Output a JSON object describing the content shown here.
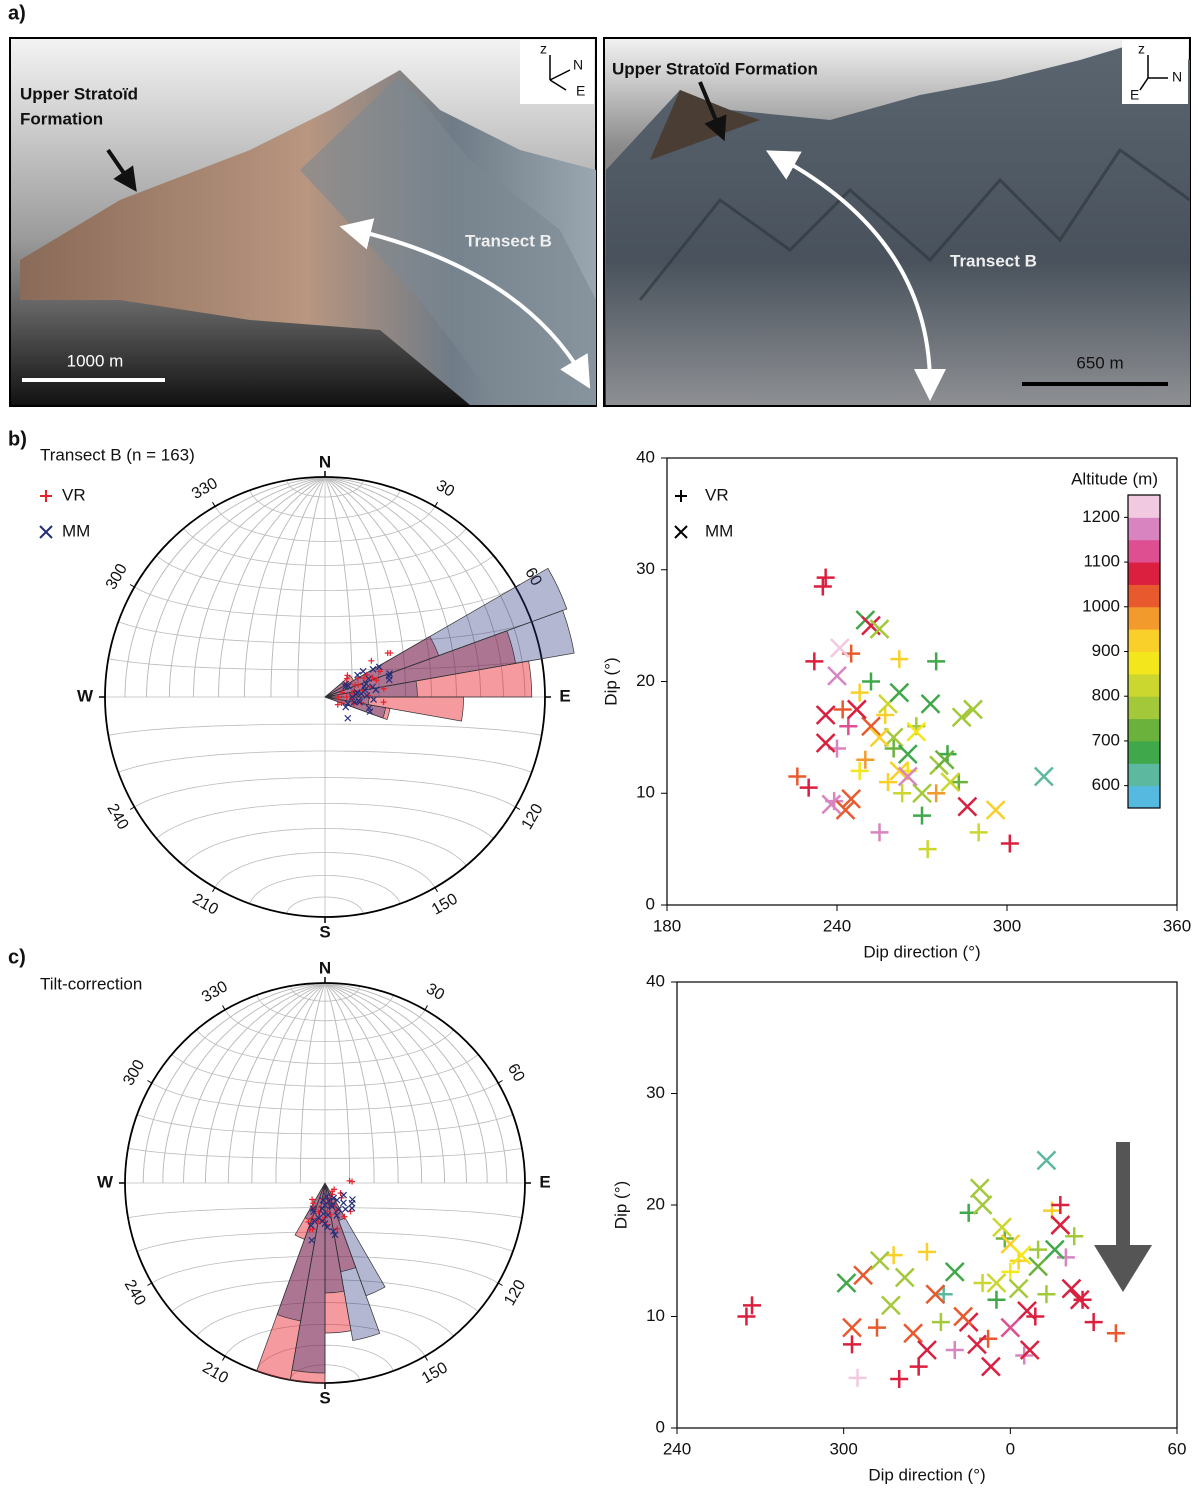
{
  "panel_labels": [
    "a)",
    "b)",
    "c)"
  ],
  "photos": [
    {
      "formation_label": [
        "Upper Stratoïd",
        "Formation"
      ],
      "transect_label": "Transect B",
      "scale_label": "1000 m",
      "compass": [
        "z",
        "N",
        "E"
      ]
    },
    {
      "formation_label": [
        "Upper Stratoïd Formation"
      ],
      "transect_label": "Transect B",
      "scale_label": "650 m",
      "compass": [
        "z",
        "N",
        "E"
      ]
    }
  ],
  "chart_data": [
    {
      "type": "stereonet",
      "title": "Transect B (n = 163)",
      "directions": [
        "N",
        "E",
        "S",
        "W"
      ],
      "azimuth_labels": [
        30,
        60,
        120,
        150,
        210,
        240,
        300,
        330
      ],
      "series": [
        {
          "name": "VR",
          "color": "#e8202a",
          "marker": "+",
          "rose": {
            "bins": [
              50,
              60,
              70,
              80,
              90,
              100,
              110
            ],
            "values": [
              0.15,
              0.55,
              0.88,
              0.94,
              0.63,
              0.3
            ]
          }
        },
        {
          "name": "MM",
          "color": "#26307a",
          "marker": "x",
          "rose": {
            "bins": [
              50,
              60,
              70,
              80,
              90,
              100,
              110
            ],
            "values": [
              0.1,
              1.17,
              1.15,
              0.42,
              0.2,
              0.28
            ]
          }
        }
      ]
    },
    {
      "type": "scatter",
      "xlabel": "Dip direction (°)",
      "ylabel": "Dip (°)",
      "xlim": [
        180,
        360
      ],
      "xticks": [
        180,
        240,
        300,
        360
      ],
      "ylim": [
        0,
        40
      ],
      "yticks": [
        0,
        10,
        20,
        30,
        40
      ],
      "colorbar": {
        "title": "Altitude (m)",
        "clim": [
          550,
          1250
        ],
        "ticks": [
          600,
          700,
          800,
          900,
          1000,
          1100,
          1200
        ],
        "colors": [
          "#56b9e0",
          "#5db8a0",
          "#3fa84a",
          "#6ab23c",
          "#a3c83a",
          "#cbd62e",
          "#f4e61c",
          "#f9d02a",
          "#f39a2c",
          "#e8592e",
          "#da1f3f",
          "#de4f92",
          "#d884c0",
          "#f1c9e0"
        ]
      },
      "series": [
        {
          "name": "VR",
          "marker": "+",
          "x": [
            236,
            235,
            232,
            230,
            226,
            239,
            240,
            245,
            242,
            248,
            250,
            255,
            257,
            260,
            262,
            265,
            268,
            270,
            272,
            275,
            279,
            283,
            290,
            301,
            252,
            263,
            244,
            258,
            275,
            248
          ],
          "y": [
            29.3,
            28.5,
            21.8,
            10.5,
            11.5,
            9.3,
            14,
            22.5,
            17.5,
            19,
            13,
            6.5,
            17,
            14,
            22,
            12,
            16,
            8,
            5,
            21.8,
            13.5,
            11,
            6.5,
            5.5,
            20,
            10,
            16,
            11,
            10,
            12
          ],
          "altitude": [
            1050,
            1050,
            1050,
            1050,
            1000,
            1150,
            1150,
            1000,
            1000,
            900,
            950,
            1150,
            900,
            700,
            900,
            850,
            750,
            650,
            800,
            650,
            650,
            700,
            800,
            1050,
            650,
            800,
            1100,
            900,
            950,
            850
          ]
        },
        {
          "name": "MM",
          "marker": "x",
          "x": [
            236,
            236,
            240,
            238,
            243,
            245,
            250,
            252,
            255,
            252,
            258,
            260,
            262,
            265,
            268,
            270,
            273,
            276,
            280,
            284,
            286,
            288,
            296,
            313,
            241,
            247,
            255,
            265,
            278,
            262
          ],
          "y": [
            17,
            14.5,
            20.5,
            9,
            8.5,
            9.5,
            25.5,
            25,
            24.7,
            16,
            18,
            15,
            12,
            13.5,
            15.5,
            10,
            18,
            12.5,
            11,
            16.8,
            8.8,
            17.5,
            8.5,
            11.5,
            23,
            17.5,
            15,
            11.5,
            13,
            19
          ],
          "altitude": [
            1050,
            1050,
            1150,
            1150,
            1000,
            1000,
            650,
            1050,
            750,
            1000,
            800,
            750,
            900,
            650,
            850,
            750,
            650,
            750,
            800,
            750,
            1050,
            750,
            900,
            600,
            1200,
            1050,
            900,
            1150,
            700,
            650
          ]
        }
      ]
    },
    {
      "type": "stereonet",
      "title": "Tilt-correction",
      "directions": [
        "N",
        "E",
        "S",
        "W"
      ],
      "azimuth_labels": [
        30,
        60,
        120,
        150,
        210,
        240,
        300,
        330
      ],
      "series": [
        {
          "color": "#e8202a",
          "marker": "+",
          "rose": {
            "bins": [
              150,
              160,
              170,
              180,
              190,
              200,
              210
            ],
            "values": [
              0.2,
              0.45,
              0.75,
              1.0,
              1.0,
              0.3
            ]
          }
        },
        {
          "color": "#26307a",
          "marker": "x",
          "rose": {
            "bins": [
              150,
              160,
              170,
              180,
              190,
              200,
              210
            ],
            "values": [
              0.6,
              0.8,
              0.55,
              0.95,
              0.7,
              0.2
            ]
          }
        }
      ]
    },
    {
      "type": "scatter",
      "xlabel": "Dip direction (°)",
      "ylabel": "Dip (°)",
      "xlim": [
        240,
        420
      ],
      "xticks": [
        240,
        300,
        {
          "value": 360,
          "label": "0"
        },
        {
          "value": 420,
          "label": "60"
        }
      ],
      "ylim": [
        0,
        40
      ],
      "yticks": [
        0,
        10,
        20,
        30,
        40
      ],
      "series": [
        {
          "marker": "+",
          "x": [
            265,
            267,
            320,
            303,
            305,
            312,
            318,
            330,
            335,
            345,
            350,
            355,
            360,
            370,
            375,
            378,
            383,
            390,
            398,
            327,
            340,
            365,
            373,
            352,
            363,
            380,
            386,
            336,
            358,
            369
          ],
          "y": [
            10,
            11,
            4.4,
            7.5,
            4.5,
            9,
            15.5,
            15.8,
            9.5,
            19.3,
            13,
            11.5,
            14,
            16,
            19.5,
            20,
            17.2,
            9.5,
            8.5,
            5.5,
            7,
            6.5,
            12,
            8,
            15,
            15.3,
            11.5,
            12,
            17,
            10
          ],
          "altitude": [
            1050,
            1050,
            1050,
            1050,
            1200,
            1000,
            900,
            900,
            750,
            650,
            800,
            650,
            850,
            750,
            900,
            1050,
            750,
            1050,
            1000,
            1050,
            1150,
            1150,
            750,
            1000,
            900,
            1150,
            1050,
            600,
            700,
            1050
          ]
        },
        {
          "marker": "x",
          "x": [
            301,
            307,
            313,
            317,
            322,
            325,
            330,
            340,
            345,
            349,
            350,
            353,
            357,
            360,
            363,
            366,
            367,
            373,
            378,
            382,
            385,
            303,
            333,
            343,
            360,
            370,
            355,
            348,
            376,
            364
          ],
          "y": [
            13,
            13.7,
            15,
            11,
            13.5,
            8.5,
            7,
            14,
            9.5,
            21.5,
            20,
            5.5,
            18,
            16.5,
            12.5,
            10.5,
            7,
            24,
            18.2,
            12.5,
            11.5,
            9,
            12,
            10,
            9,
            14.5,
            13,
            7.5,
            16,
            15.5
          ],
          "altitude": [
            650,
            1000,
            750,
            750,
            750,
            1000,
            1050,
            650,
            1050,
            750,
            750,
            1050,
            800,
            900,
            750,
            1050,
            1050,
            600,
            1050,
            1050,
            1050,
            1000,
            1000,
            1000,
            1100,
            700,
            800,
            1050,
            650,
            850
          ]
        }
      ]
    }
  ]
}
